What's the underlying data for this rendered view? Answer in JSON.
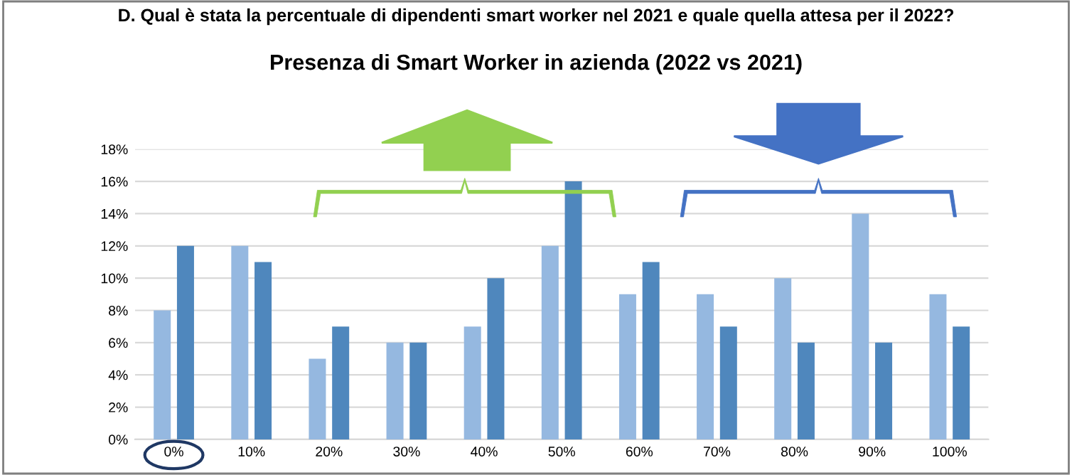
{
  "chart_data": {
    "type": "bar",
    "title": "Presenza di Smart Worker in azienda (2022 vs 2021)",
    "subtitle": "D. Qual è stata la percentuale di dipendenti smart worker nel 2021 e quale quella attesa per il 2022?",
    "categories": [
      "0%",
      "10%",
      "20%",
      "30%",
      "40%",
      "50%",
      "60%",
      "70%",
      "80%",
      "90%",
      "100%"
    ],
    "series": [
      {
        "color": "#95b8e0",
        "values": [
          8,
          12,
          5,
          6,
          7,
          12,
          9,
          9,
          10,
          14,
          9
        ]
      },
      {
        "color": "#4f87bd",
        "values": [
          12,
          11,
          7,
          6,
          10,
          16,
          11,
          7,
          6,
          6,
          7
        ]
      }
    ],
    "ylim": [
      0,
      18
    ],
    "yticks": [
      {
        "value": 0,
        "label": "0%"
      },
      {
        "value": 2,
        "label": "2%"
      },
      {
        "value": 4,
        "label": "4%"
      },
      {
        "value": 6,
        "label": "6%"
      },
      {
        "value": 8,
        "label": "8%"
      },
      {
        "value": 10,
        "label": "10%"
      },
      {
        "value": 12,
        "label": "12%"
      },
      {
        "value": 14,
        "label": "14%"
      },
      {
        "value": 16,
        "label": "16%"
      },
      {
        "value": 18,
        "label": "18%"
      }
    ],
    "grid": "y",
    "legend": false
  }
}
